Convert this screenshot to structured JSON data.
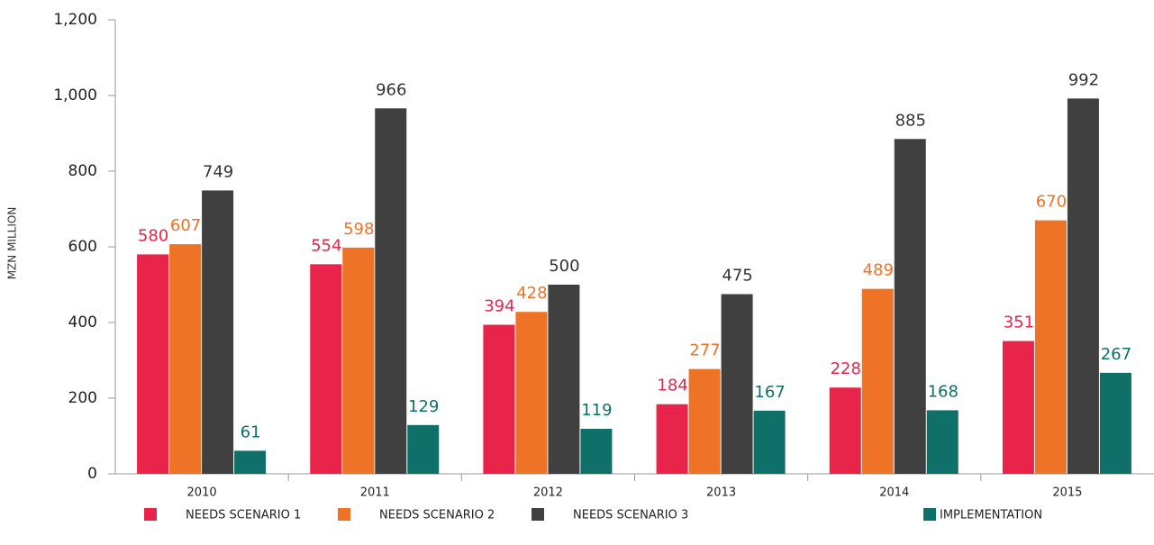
{
  "chart_data": {
    "type": "bar",
    "y_label": "MZN MILLION",
    "categories": [
      "2010",
      "2011",
      "2012",
      "2013",
      "2014",
      "2015"
    ],
    "series": [
      {
        "name": "NEEDS SCENARIO 1",
        "color": "#e8244a",
        "label_color": "#e8244a",
        "values": [
          580,
          554,
          394,
          184,
          228,
          351
        ]
      },
      {
        "name": "NEEDS SCENARIO 2",
        "color": "#ee7326",
        "label_color": "#ee7326",
        "values": [
          607,
          598,
          428,
          277,
          489,
          670
        ]
      },
      {
        "name": "NEEDS SCENARIO 3",
        "color": "#404040",
        "label_color": "#333333",
        "values": [
          749,
          966,
          500,
          475,
          885,
          992
        ]
      },
      {
        "name": "IMPLEMENTATION",
        "color": "#0e7068",
        "label_color": "#0e7068",
        "values": [
          61,
          129,
          119,
          167,
          168,
          267
        ]
      }
    ],
    "ylim": [
      0,
      1200
    ],
    "yticks": [
      0,
      200,
      400,
      600,
      800,
      {
        "value": 1000,
        "label": "1,000"
      },
      {
        "value": 1200,
        "label": "1,200"
      }
    ],
    "grid": false
  }
}
